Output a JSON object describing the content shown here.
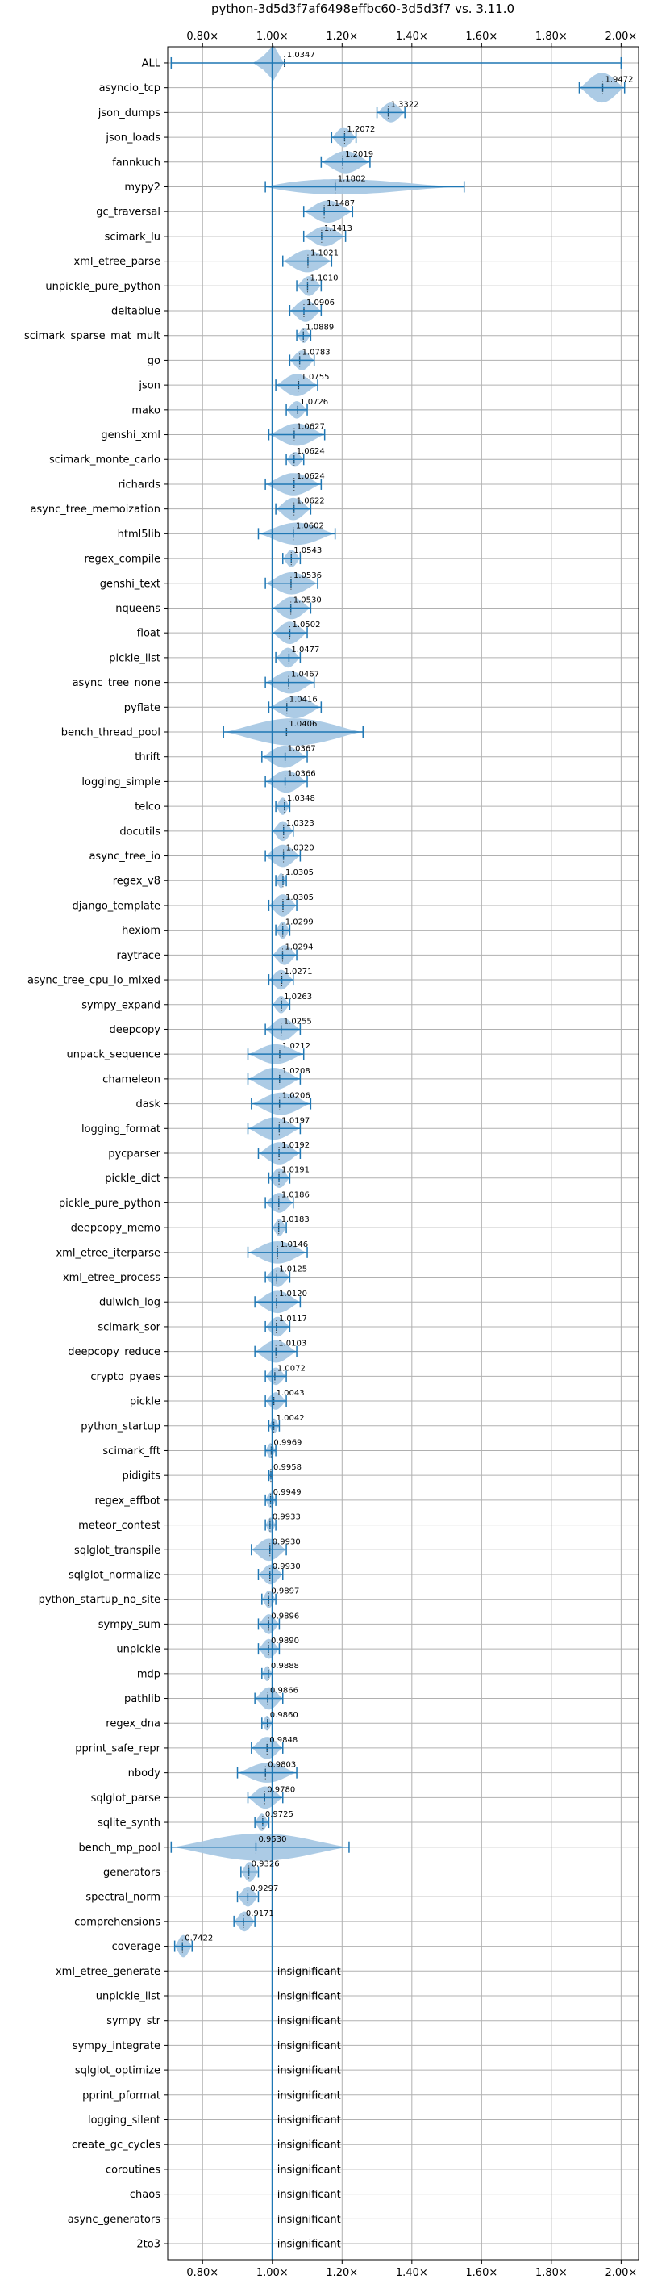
{
  "chart_data": {
    "type": "violin",
    "title": "python-3d5d3f7af6498effbc60-3d5d3f7 vs. 3.11.0",
    "xlabel": "",
    "ylabel": "",
    "xlim": [
      0.7,
      2.05
    ],
    "xticks": [
      0.8,
      1.0,
      1.2,
      1.4,
      1.6,
      1.8,
      2.0
    ],
    "xtick_labels": [
      "0.80×",
      "1.00×",
      "1.20×",
      "1.40×",
      "1.60×",
      "1.80×",
      "2.00×"
    ],
    "reference_line": 1.0,
    "grid": true,
    "insignificant_label": "insignificant",
    "colors": {
      "violin": "#a8c8e4",
      "line": "#1f77b4",
      "grid": "#b0b0b0"
    },
    "benchmarks": [
      {
        "name": "ALL",
        "value": 1.0347,
        "label": "1.0347",
        "min": 0.71,
        "max": 2.0,
        "width": 0.6,
        "bulge": [
          0.99,
          1.0
        ],
        "insignificant": false
      },
      {
        "name": "asyncio_tcp",
        "value": 1.9472,
        "label": "1.9472",
        "min": 1.88,
        "max": 2.01,
        "width": 0.6,
        "insignificant": false
      },
      {
        "name": "json_dumps",
        "value": 1.3322,
        "label": "1.3322",
        "min": 1.3,
        "max": 1.38,
        "width": 0.4,
        "insignificant": false
      },
      {
        "name": "json_loads",
        "value": 1.2072,
        "label": "1.2072",
        "min": 1.17,
        "max": 1.24,
        "width": 0.4,
        "insignificant": false
      },
      {
        "name": "fannkuch",
        "value": 1.2019,
        "label": "1.2019",
        "min": 1.14,
        "max": 1.28,
        "width": 0.45,
        "insignificant": false
      },
      {
        "name": "mypy2",
        "value": 1.1802,
        "label": "1.1802",
        "min": 0.98,
        "max": 1.55,
        "width": 0.55,
        "skew": "right",
        "insignificant": false
      },
      {
        "name": "gc_traversal",
        "value": 1.1487,
        "label": "1.1487",
        "min": 1.09,
        "max": 1.23,
        "width": 0.45,
        "insignificant": false
      },
      {
        "name": "scimark_lu",
        "value": 1.1413,
        "label": "1.1413",
        "min": 1.09,
        "max": 1.21,
        "width": 0.4,
        "insignificant": false
      },
      {
        "name": "xml_etree_parse",
        "value": 1.1021,
        "label": "1.1021",
        "min": 1.03,
        "max": 1.17,
        "width": 0.45,
        "insignificant": false
      },
      {
        "name": "unpickle_pure_python",
        "value": 1.101,
        "label": "1.1010",
        "min": 1.07,
        "max": 1.14,
        "width": 0.4,
        "insignificant": false
      },
      {
        "name": "deltablue",
        "value": 1.0906,
        "label": "1.0906",
        "min": 1.05,
        "max": 1.14,
        "width": 0.45,
        "insignificant": false
      },
      {
        "name": "scimark_sparse_mat_mult",
        "value": 1.0889,
        "label": "1.0889",
        "min": 1.07,
        "max": 1.11,
        "width": 0.3,
        "insignificant": false
      },
      {
        "name": "go",
        "value": 1.0783,
        "label": "1.0783",
        "min": 1.05,
        "max": 1.12,
        "width": 0.4,
        "insignificant": false
      },
      {
        "name": "json",
        "value": 1.0755,
        "label": "1.0755",
        "min": 1.01,
        "max": 1.13,
        "width": 0.45,
        "insignificant": false
      },
      {
        "name": "mako",
        "value": 1.0726,
        "label": "1.0726",
        "min": 1.04,
        "max": 1.1,
        "width": 0.35,
        "insignificant": false
      },
      {
        "name": "genshi_xml",
        "value": 1.0627,
        "label": "1.0627",
        "min": 0.99,
        "max": 1.15,
        "width": 0.45,
        "insignificant": false
      },
      {
        "name": "scimark_monte_carlo",
        "value": 1.0624,
        "label": "1.0624",
        "min": 1.04,
        "max": 1.09,
        "width": 0.3,
        "insignificant": false
      },
      {
        "name": "richards",
        "value": 1.0624,
        "label": "1.0624",
        "min": 0.98,
        "max": 1.14,
        "width": 0.45,
        "insignificant": false
      },
      {
        "name": "async_tree_memoization",
        "value": 1.0622,
        "label": "1.0622",
        "min": 1.01,
        "max": 1.11,
        "width": 0.45,
        "insignificant": false
      },
      {
        "name": "html5lib",
        "value": 1.0602,
        "label": "1.0602",
        "min": 0.96,
        "max": 1.18,
        "width": 0.45,
        "insignificant": false
      },
      {
        "name": "regex_compile",
        "value": 1.0543,
        "label": "1.0543",
        "min": 1.03,
        "max": 1.08,
        "width": 0.35,
        "insignificant": false
      },
      {
        "name": "genshi_text",
        "value": 1.0536,
        "label": "1.0536",
        "min": 0.98,
        "max": 1.13,
        "width": 0.45,
        "insignificant": false
      },
      {
        "name": "nqueens",
        "value": 1.053,
        "label": "1.0530",
        "min": 1.0,
        "max": 1.11,
        "width": 0.45,
        "insignificant": false
      },
      {
        "name": "float",
        "value": 1.0502,
        "label": "1.0502",
        "min": 1.0,
        "max": 1.1,
        "width": 0.45,
        "insignificant": false
      },
      {
        "name": "pickle_list",
        "value": 1.0477,
        "label": "1.0477",
        "min": 1.01,
        "max": 1.08,
        "width": 0.4,
        "insignificant": false
      },
      {
        "name": "async_tree_none",
        "value": 1.0467,
        "label": "1.0467",
        "min": 0.98,
        "max": 1.12,
        "width": 0.45,
        "insignificant": false
      },
      {
        "name": "pyflate",
        "value": 1.0416,
        "label": "1.0416",
        "min": 0.99,
        "max": 1.14,
        "width": 0.45,
        "insignificant": false
      },
      {
        "name": "bench_thread_pool",
        "value": 1.0406,
        "label": "1.0406",
        "min": 0.86,
        "max": 1.26,
        "width": 0.55,
        "insignificant": false
      },
      {
        "name": "thrift",
        "value": 1.0367,
        "label": "1.0367",
        "min": 0.97,
        "max": 1.1,
        "width": 0.45,
        "insignificant": false
      },
      {
        "name": "logging_simple",
        "value": 1.0366,
        "label": "1.0366",
        "min": 0.98,
        "max": 1.1,
        "width": 0.45,
        "insignificant": false
      },
      {
        "name": "telco",
        "value": 1.0348,
        "label": "1.0348",
        "min": 1.01,
        "max": 1.05,
        "width": 0.35,
        "insignificant": false
      },
      {
        "name": "docutils",
        "value": 1.0323,
        "label": "1.0323",
        "min": 1.0,
        "max": 1.06,
        "width": 0.4,
        "insignificant": false
      },
      {
        "name": "async_tree_io",
        "value": 1.032,
        "label": "1.0320",
        "min": 0.98,
        "max": 1.08,
        "width": 0.45,
        "insignificant": false
      },
      {
        "name": "regex_v8",
        "value": 1.0305,
        "label": "1.0305",
        "min": 1.01,
        "max": 1.04,
        "width": 0.3,
        "insignificant": false
      },
      {
        "name": "django_template",
        "value": 1.0305,
        "label": "1.0305",
        "min": 0.99,
        "max": 1.07,
        "width": 0.45,
        "insignificant": false
      },
      {
        "name": "hexiom",
        "value": 1.0299,
        "label": "1.0299",
        "min": 1.01,
        "max": 1.05,
        "width": 0.35,
        "insignificant": false
      },
      {
        "name": "raytrace",
        "value": 1.0294,
        "label": "1.0294",
        "min": 1.0,
        "max": 1.07,
        "width": 0.4,
        "insignificant": false
      },
      {
        "name": "async_tree_cpu_io_mixed",
        "value": 1.0271,
        "label": "1.0271",
        "min": 0.99,
        "max": 1.06,
        "width": 0.4,
        "insignificant": false
      },
      {
        "name": "sympy_expand",
        "value": 1.0263,
        "label": "1.0263",
        "min": 1.0,
        "max": 1.05,
        "width": 0.35,
        "insignificant": false
      },
      {
        "name": "deepcopy",
        "value": 1.0255,
        "label": "1.0255",
        "min": 0.98,
        "max": 1.08,
        "width": 0.45,
        "insignificant": false
      },
      {
        "name": "unpack_sequence",
        "value": 1.0212,
        "label": "1.0212",
        "min": 0.93,
        "max": 1.09,
        "width": 0.4,
        "insignificant": false
      },
      {
        "name": "chameleon",
        "value": 1.0208,
        "label": "1.0208",
        "min": 0.93,
        "max": 1.08,
        "width": 0.45,
        "insignificant": false
      },
      {
        "name": "dask",
        "value": 1.0206,
        "label": "1.0206",
        "min": 0.94,
        "max": 1.11,
        "width": 0.45,
        "insignificant": false
      },
      {
        "name": "logging_format",
        "value": 1.0197,
        "label": "1.0197",
        "min": 0.93,
        "max": 1.08,
        "width": 0.45,
        "insignificant": false
      },
      {
        "name": "pycparser",
        "value": 1.0192,
        "label": "1.0192",
        "min": 0.96,
        "max": 1.08,
        "width": 0.45,
        "insignificant": false
      },
      {
        "name": "pickle_dict",
        "value": 1.0191,
        "label": "1.0191",
        "min": 0.99,
        "max": 1.05,
        "width": 0.4,
        "insignificant": false
      },
      {
        "name": "pickle_pure_python",
        "value": 1.0186,
        "label": "1.0186",
        "min": 0.98,
        "max": 1.06,
        "width": 0.4,
        "insignificant": false
      },
      {
        "name": "deepcopy_memo",
        "value": 1.0183,
        "label": "1.0183",
        "min": 1.0,
        "max": 1.04,
        "width": 0.35,
        "insignificant": false
      },
      {
        "name": "xml_etree_iterparse",
        "value": 1.0146,
        "label": "1.0146",
        "min": 0.93,
        "max": 1.1,
        "width": 0.45,
        "insignificant": false
      },
      {
        "name": "xml_etree_process",
        "value": 1.0125,
        "label": "1.0125",
        "min": 0.98,
        "max": 1.05,
        "width": 0.4,
        "insignificant": false
      },
      {
        "name": "dulwich_log",
        "value": 1.012,
        "label": "1.0120",
        "min": 0.95,
        "max": 1.08,
        "width": 0.45,
        "insignificant": false
      },
      {
        "name": "scimark_sor",
        "value": 1.0117,
        "label": "1.0117",
        "min": 0.98,
        "max": 1.05,
        "width": 0.4,
        "insignificant": false
      },
      {
        "name": "deepcopy_reduce",
        "value": 1.0103,
        "label": "1.0103",
        "min": 0.95,
        "max": 1.07,
        "width": 0.45,
        "insignificant": false
      },
      {
        "name": "crypto_pyaes",
        "value": 1.0072,
        "label": "1.0072",
        "min": 0.98,
        "max": 1.04,
        "width": 0.35,
        "insignificant": false
      },
      {
        "name": "pickle",
        "value": 1.0043,
        "label": "1.0043",
        "min": 0.98,
        "max": 1.04,
        "width": 0.35,
        "insignificant": false
      },
      {
        "name": "python_startup",
        "value": 1.0042,
        "label": "1.0042",
        "min": 0.99,
        "max": 1.02,
        "width": 0.3,
        "insignificant": false
      },
      {
        "name": "scimark_fft",
        "value": 0.9969,
        "label": "0.9969",
        "min": 0.98,
        "max": 1.01,
        "width": 0.3,
        "insignificant": false
      },
      {
        "name": "pidigits",
        "value": 0.9958,
        "label": "0.9958",
        "min": 0.99,
        "max": 1.0,
        "width": 0.25,
        "insignificant": false
      },
      {
        "name": "regex_effbot",
        "value": 0.9949,
        "label": "0.9949",
        "min": 0.98,
        "max": 1.01,
        "width": 0.3,
        "insignificant": false
      },
      {
        "name": "meteor_contest",
        "value": 0.9933,
        "label": "0.9933",
        "min": 0.98,
        "max": 1.01,
        "width": 0.3,
        "insignificant": false
      },
      {
        "name": "sqlglot_transpile",
        "value": 0.993,
        "label": "0.9930",
        "min": 0.94,
        "max": 1.04,
        "width": 0.45,
        "insignificant": false
      },
      {
        "name": "sqlglot_normalize",
        "value": 0.993,
        "label": "0.9930",
        "min": 0.96,
        "max": 1.03,
        "width": 0.4,
        "insignificant": false
      },
      {
        "name": "python_startup_no_site",
        "value": 0.9897,
        "label": "0.9897",
        "min": 0.97,
        "max": 1.01,
        "width": 0.35,
        "insignificant": false
      },
      {
        "name": "sympy_sum",
        "value": 0.9896,
        "label": "0.9896",
        "min": 0.96,
        "max": 1.02,
        "width": 0.4,
        "insignificant": false
      },
      {
        "name": "unpickle",
        "value": 0.989,
        "label": "0.9890",
        "min": 0.96,
        "max": 1.02,
        "width": 0.4,
        "insignificant": false
      },
      {
        "name": "mdp",
        "value": 0.9888,
        "label": "0.9888",
        "min": 0.97,
        "max": 1.0,
        "width": 0.3,
        "insignificant": false
      },
      {
        "name": "pathlib",
        "value": 0.9866,
        "label": "0.9866",
        "min": 0.95,
        "max": 1.03,
        "width": 0.45,
        "insignificant": false
      },
      {
        "name": "regex_dna",
        "value": 0.986,
        "label": "0.9860",
        "min": 0.97,
        "max": 1.0,
        "width": 0.3,
        "insignificant": false
      },
      {
        "name": "pprint_safe_repr",
        "value": 0.9848,
        "label": "0.9848",
        "min": 0.94,
        "max": 1.03,
        "width": 0.45,
        "insignificant": false
      },
      {
        "name": "nbody",
        "value": 0.9803,
        "label": "0.9803",
        "min": 0.9,
        "max": 1.07,
        "width": 0.4,
        "insignificant": false
      },
      {
        "name": "sqlglot_parse",
        "value": 0.978,
        "label": "0.9780",
        "min": 0.93,
        "max": 1.03,
        "width": 0.45,
        "insignificant": false
      },
      {
        "name": "sqlite_synth",
        "value": 0.9725,
        "label": "0.9725",
        "min": 0.95,
        "max": 0.99,
        "width": 0.35,
        "insignificant": false
      },
      {
        "name": "bench_mp_pool",
        "value": 0.953,
        "label": "0.9530",
        "min": 0.71,
        "max": 1.22,
        "width": 0.55,
        "insignificant": false
      },
      {
        "name": "generators",
        "value": 0.9326,
        "label": "0.9326",
        "min": 0.91,
        "max": 0.96,
        "width": 0.4,
        "insignificant": false
      },
      {
        "name": "spectral_norm",
        "value": 0.9297,
        "label": "0.9297",
        "min": 0.9,
        "max": 0.96,
        "width": 0.4,
        "insignificant": false
      },
      {
        "name": "comprehensions",
        "value": 0.9171,
        "label": "0.9171",
        "min": 0.89,
        "max": 0.95,
        "width": 0.4,
        "insignificant": false
      },
      {
        "name": "coverage",
        "value": 0.7422,
        "label": "0.7422",
        "min": 0.72,
        "max": 0.77,
        "width": 0.45,
        "insignificant": false
      },
      {
        "name": "xml_etree_generate",
        "insignificant": true
      },
      {
        "name": "unpickle_list",
        "insignificant": true
      },
      {
        "name": "sympy_str",
        "insignificant": true
      },
      {
        "name": "sympy_integrate",
        "insignificant": true
      },
      {
        "name": "sqlglot_optimize",
        "insignificant": true
      },
      {
        "name": "pprint_pformat",
        "insignificant": true
      },
      {
        "name": "logging_silent",
        "insignificant": true
      },
      {
        "name": "create_gc_cycles",
        "insignificant": true
      },
      {
        "name": "coroutines",
        "insignificant": true
      },
      {
        "name": "chaos",
        "insignificant": true
      },
      {
        "name": "async_generators",
        "insignificant": true
      },
      {
        "name": "2to3",
        "insignificant": true
      }
    ]
  }
}
